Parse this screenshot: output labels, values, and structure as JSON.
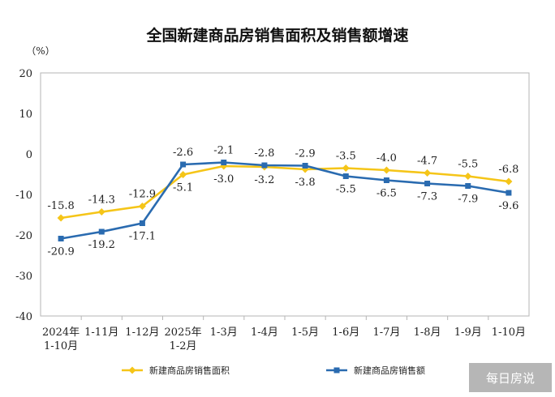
{
  "chart_data": {
    "type": "line",
    "title": "全国新建商品房销售面积及销售额增速",
    "unit_label": "（%）",
    "categories": [
      [
        "2024年",
        "1-10月"
      ],
      [
        "1-11月"
      ],
      [
        "1-12月"
      ],
      [
        "2025年",
        "1-2月"
      ],
      [
        "1-3月"
      ],
      [
        "1-4月"
      ],
      [
        "1-5月"
      ],
      [
        "1-6月"
      ],
      [
        "1-7月"
      ],
      [
        "1-8月"
      ],
      [
        "1-9月"
      ],
      [
        "1-10月"
      ]
    ],
    "ylim": [
      -40,
      20
    ],
    "yticks": [
      20,
      10,
      0,
      -10,
      -20,
      -30,
      -40
    ],
    "grid": false,
    "legend": "bottom",
    "series": [
      {
        "name": "新建商品房销售面积",
        "color": "#f5c518",
        "marker": "diamond",
        "values": [
          -15.8,
          -14.3,
          -12.9,
          -5.1,
          -3.0,
          -3.2,
          -3.8,
          -3.5,
          -4.0,
          -4.7,
          -5.5,
          -6.8
        ],
        "labels": [
          "-15.8",
          "-14.3",
          "-12.9",
          "-5.1",
          "-3.0",
          "-3.2",
          "-3.8",
          "-3.5",
          "-4.0",
          "-4.7",
          "-5.5",
          "-6.8"
        ]
      },
      {
        "name": "新建商品房销售额",
        "color": "#2a6bb0",
        "marker": "square",
        "values": [
          -20.9,
          -19.2,
          -17.1,
          -2.6,
          -2.1,
          -2.8,
          -2.9,
          -5.5,
          -6.5,
          -7.3,
          -7.9,
          -9.6
        ],
        "labels": [
          "-20.9",
          "-19.2",
          "-17.1",
          "-2.6",
          "-2.1",
          "-2.8",
          "-2.9",
          "-5.5",
          "-6.5",
          "-7.3",
          "-7.9",
          "-9.6"
        ]
      }
    ]
  },
  "watermark": "每日房说"
}
